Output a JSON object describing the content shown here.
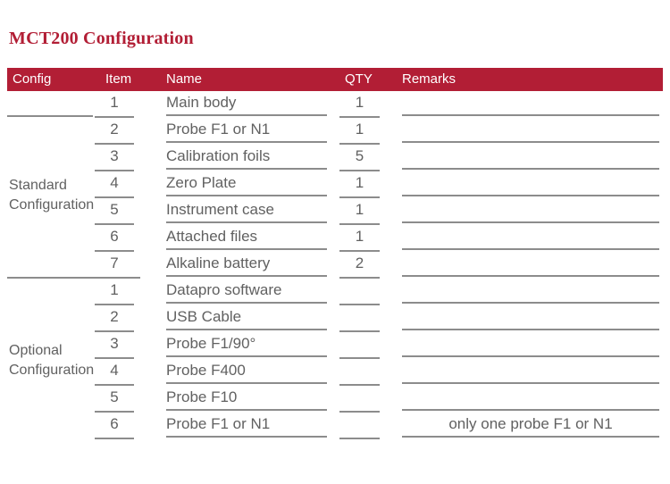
{
  "page_title": "MCT200 Configuration",
  "colors": {
    "accent_red": "#B21E35",
    "header_text": "#FFFFFF",
    "body_text": "#616161",
    "line_gray": "#8C8C8C"
  },
  "table": {
    "headers": {
      "config": "Config",
      "item": "Item",
      "name": "Name",
      "qty": "QTY",
      "remarks": "Remarks"
    },
    "sections": [
      {
        "label": "Standard Configuration",
        "rows": [
          {
            "item": "1",
            "name": "Main body",
            "qty": "1",
            "remarks": ""
          },
          {
            "item": "2",
            "name": "Probe F1 or N1",
            "qty": "1",
            "remarks": ""
          },
          {
            "item": "3",
            "name": "Calibration foils",
            "qty": "5",
            "remarks": ""
          },
          {
            "item": "4",
            "name": "Zero Plate",
            "qty": "1",
            "remarks": ""
          },
          {
            "item": "5",
            "name": "Instrument case",
            "qty": "1",
            "remarks": ""
          },
          {
            "item": "6",
            "name": "Attached files",
            "qty": "1",
            "remarks": ""
          },
          {
            "item": "7",
            "name": "Alkaline battery",
            "qty": "2",
            "remarks": ""
          }
        ]
      },
      {
        "label": "Optional Configuration",
        "rows": [
          {
            "item": "1",
            "name": "Datapro software",
            "qty": "",
            "remarks": ""
          },
          {
            "item": "2",
            "name": "USB Cable",
            "qty": "",
            "remarks": ""
          },
          {
            "item": "3",
            "name": "Probe F1/90°",
            "qty": "",
            "remarks": ""
          },
          {
            "item": "4",
            "name": "Probe F400",
            "qty": "",
            "remarks": ""
          },
          {
            "item": "5",
            "name": "Probe F10",
            "qty": "",
            "remarks": ""
          },
          {
            "item": "6",
            "name": "Probe F1 or N1",
            "qty": "",
            "remarks": "only one probe F1 or N1"
          }
        ]
      }
    ]
  }
}
